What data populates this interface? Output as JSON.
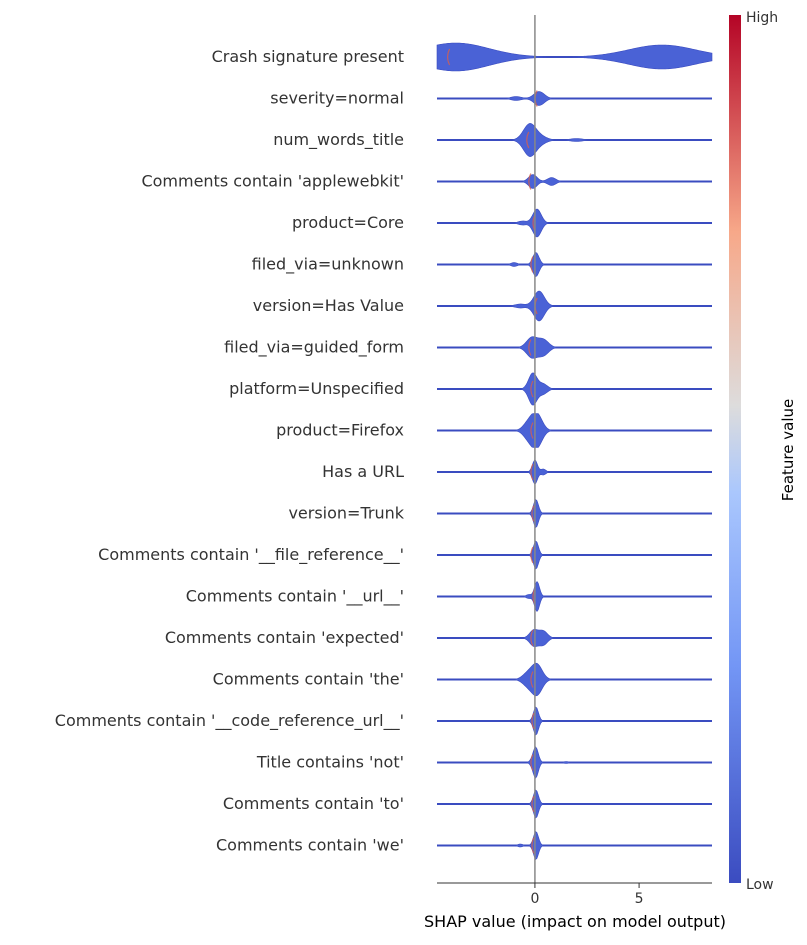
{
  "chart_data": {
    "type": "violin",
    "xlabel": "SHAP value (impact on model output)",
    "xlim": [
      -4.7,
      8.5
    ],
    "x_ticks": [
      0,
      5
    ],
    "colorbar": {
      "label": "Feature value",
      "high_label": "High",
      "low_label": "Low",
      "colors": [
        "#3b4cc0",
        "#aac7fd",
        "#dddcdc",
        "#f7a889",
        "#b40426"
      ]
    },
    "features": [
      {
        "name": "Crash signature present",
        "range": [
          -4.7,
          8.5
        ],
        "center": -4.0,
        "spread": 1.0,
        "peaks": [
          {
            "x": -3.8,
            "h": 14
          },
          {
            "x": 6.1,
            "h": 12
          }
        ],
        "color_left": "red",
        "color_right": "blue"
      },
      {
        "name": "severity=normal",
        "range": [
          -4.7,
          8.5
        ],
        "center": 0.2,
        "spread": 0.25,
        "peaks": [
          {
            "x": 0.2,
            "h": 7
          },
          {
            "x": -0.9,
            "h": 2
          }
        ]
      },
      {
        "name": "num_words_title",
        "range": [
          -4.7,
          8.5
        ],
        "center": -0.2,
        "spread": 0.3,
        "peaks": [
          {
            "x": -0.25,
            "h": 16
          },
          {
            "x": 0.3,
            "h": 3
          },
          {
            "x": 2.0,
            "h": 1.5
          }
        ]
      },
      {
        "name": "Comments contain 'applewebkit'",
        "range": [
          -4.7,
          8.5
        ],
        "center": -0.1,
        "spread": 0.2,
        "peaks": [
          {
            "x": -0.1,
            "h": 7
          },
          {
            "x": 0.8,
            "h": 4
          }
        ]
      },
      {
        "name": "product=Core",
        "range": [
          -4.7,
          8.5
        ],
        "center": 0.1,
        "spread": 0.2,
        "peaks": [
          {
            "x": 0.1,
            "h": 14
          },
          {
            "x": -0.6,
            "h": 2
          }
        ]
      },
      {
        "name": "filed_via=unknown",
        "range": [
          -4.7,
          8.5
        ],
        "center": 0.0,
        "spread": 0.15,
        "peaks": [
          {
            "x": 0.05,
            "h": 12
          },
          {
            "x": -1.0,
            "h": 2
          }
        ]
      },
      {
        "name": "version=Has Value",
        "range": [
          -4.7,
          8.5
        ],
        "center": 0.2,
        "spread": 0.25,
        "peaks": [
          {
            "x": 0.2,
            "h": 15
          },
          {
            "x": -0.7,
            "h": 2
          }
        ]
      },
      {
        "name": "filed_via=guided_form",
        "range": [
          -4.7,
          8.5
        ],
        "center": -0.1,
        "spread": 0.25,
        "peaks": [
          {
            "x": -0.15,
            "h": 10
          },
          {
            "x": 0.4,
            "h": 8
          }
        ]
      },
      {
        "name": "platform=Unspecified",
        "range": [
          -4.7,
          8.5
        ],
        "center": 0.0,
        "spread": 0.2,
        "peaks": [
          {
            "x": -0.1,
            "h": 16
          },
          {
            "x": 0.4,
            "h": 5
          }
        ]
      },
      {
        "name": "product=Firefox",
        "range": [
          -4.7,
          8.5
        ],
        "center": 0.0,
        "spread": 0.25,
        "peaks": [
          {
            "x": 0.1,
            "h": 16
          },
          {
            "x": -0.3,
            "h": 8
          }
        ]
      },
      {
        "name": "Has a URL",
        "range": [
          -4.7,
          8.5
        ],
        "center": 0.0,
        "spread": 0.1,
        "peaks": [
          {
            "x": 0.0,
            "h": 12
          },
          {
            "x": 0.4,
            "h": 3
          }
        ]
      },
      {
        "name": "version=Trunk",
        "range": [
          -4.7,
          8.5
        ],
        "center": 0.05,
        "spread": 0.1,
        "peaks": [
          {
            "x": 0.05,
            "h": 14
          }
        ]
      },
      {
        "name": "Comments contain '__file_reference__'",
        "range": [
          -4.7,
          8.5
        ],
        "center": 0.0,
        "spread": 0.1,
        "peaks": [
          {
            "x": 0.05,
            "h": 14
          }
        ]
      },
      {
        "name": "Comments contain '__url__'",
        "range": [
          -4.7,
          8.5
        ],
        "center": 0.1,
        "spread": 0.1,
        "peaks": [
          {
            "x": 0.1,
            "h": 15
          },
          {
            "x": -0.3,
            "h": 2
          }
        ]
      },
      {
        "name": "Comments contain 'expected'",
        "range": [
          -4.7,
          8.5
        ],
        "center": 0.0,
        "spread": 0.2,
        "peaks": [
          {
            "x": -0.05,
            "h": 8
          },
          {
            "x": 0.4,
            "h": 7
          }
        ]
      },
      {
        "name": "Comments contain 'the'",
        "range": [
          -4.7,
          8.5
        ],
        "center": 0.0,
        "spread": 0.25,
        "peaks": [
          {
            "x": 0.1,
            "h": 15
          },
          {
            "x": -0.35,
            "h": 6
          }
        ]
      },
      {
        "name": "Comments contain '__code_reference_url__'",
        "range": [
          -4.7,
          8.5
        ],
        "center": 0.05,
        "spread": 0.05,
        "peaks": [
          {
            "x": 0.05,
            "h": 14
          }
        ]
      },
      {
        "name": "Title contains 'not'",
        "range": [
          -4.7,
          8.5
        ],
        "center": 0.0,
        "spread": 0.1,
        "peaks": [
          {
            "x": 0.05,
            "h": 14
          },
          {
            "x": -0.1,
            "h": 3
          },
          {
            "x": 1.5,
            "h": 1
          }
        ]
      },
      {
        "name": "Comments contain 'to'",
        "range": [
          -4.7,
          8.5
        ],
        "center": 0.05,
        "spread": 0.1,
        "peaks": [
          {
            "x": 0.05,
            "h": 14
          }
        ]
      },
      {
        "name": "Comments contain 'we'",
        "range": [
          -4.7,
          8.5
        ],
        "center": 0.05,
        "spread": 0.08,
        "peaks": [
          {
            "x": 0.05,
            "h": 14
          },
          {
            "x": -0.7,
            "h": 1.5
          }
        ]
      }
    ]
  }
}
